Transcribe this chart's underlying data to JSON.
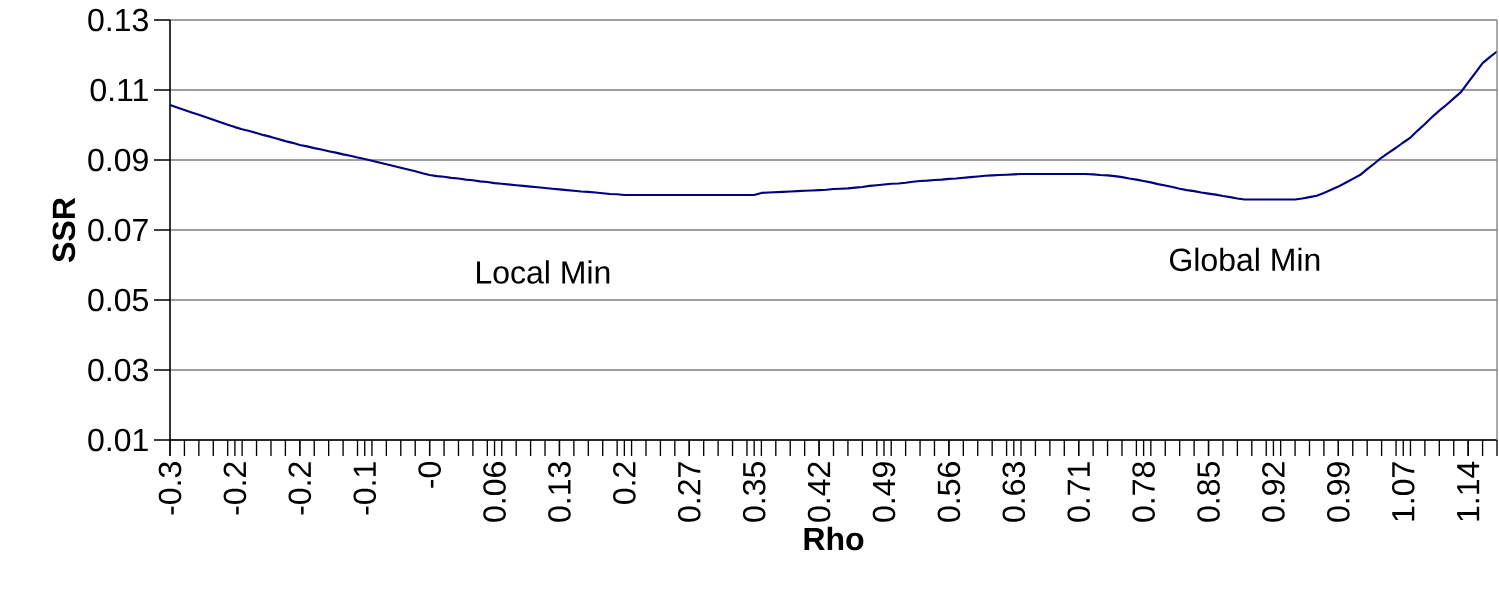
{
  "chart_data": {
    "type": "line",
    "xlabel": "Rho",
    "ylabel": "SSR",
    "categories": [
      "-0.3",
      null,
      null,
      null,
      null,
      null,
      null,
      null,
      null,
      "-0.2",
      null,
      null,
      null,
      null,
      null,
      null,
      null,
      null,
      "-0.2",
      null,
      null,
      null,
      null,
      null,
      null,
      null,
      null,
      "-0.1",
      null,
      null,
      null,
      null,
      null,
      null,
      null,
      null,
      "-0",
      null,
      null,
      null,
      null,
      null,
      null,
      null,
      null,
      "0.06",
      null,
      null,
      null,
      null,
      null,
      null,
      null,
      null,
      "0.13",
      null,
      null,
      null,
      null,
      null,
      null,
      null,
      null,
      "0.2",
      null,
      null,
      null,
      null,
      null,
      null,
      null,
      null,
      "0.27",
      null,
      null,
      null,
      null,
      null,
      null,
      null,
      null,
      "0.35",
      null,
      null,
      null,
      null,
      null,
      null,
      null,
      null,
      "0.42",
      null,
      null,
      null,
      null,
      null,
      null,
      null,
      null,
      "0.49",
      null,
      null,
      null,
      null,
      null,
      null,
      null,
      null,
      "0.56",
      null,
      null,
      null,
      null,
      null,
      null,
      null,
      null,
      "0.63",
      null,
      null,
      null,
      null,
      null,
      null,
      null,
      null,
      "0.71",
      null,
      null,
      null,
      null,
      null,
      null,
      null,
      null,
      "0.78",
      null,
      null,
      null,
      null,
      null,
      null,
      null,
      null,
      "0.85",
      null,
      null,
      null,
      null,
      null,
      null,
      null,
      null,
      "0.92",
      null,
      null,
      null,
      null,
      null,
      null,
      null,
      null,
      "0.99",
      null,
      null,
      null,
      null,
      null,
      null,
      null,
      null,
      "1.07",
      null,
      null,
      null,
      null,
      null,
      null,
      null,
      null,
      "1.14",
      null,
      null,
      null,
      null
    ],
    "values": [
      0.1057,
      0.105,
      0.1043,
      0.1036,
      0.1029,
      0.1022,
      0.1015,
      0.1008,
      0.1001,
      0.0994,
      0.0988,
      0.0983,
      0.0977,
      0.0971,
      0.0966,
      0.096,
      0.0954,
      0.0949,
      0.0943,
      0.0939,
      0.0934,
      0.093,
      0.0925,
      0.0921,
      0.0916,
      0.0912,
      0.0907,
      0.0903,
      0.0898,
      0.0893,
      0.0888,
      0.0883,
      0.0878,
      0.0873,
      0.0868,
      0.0862,
      0.0857,
      0.0854,
      0.0852,
      0.0849,
      0.0847,
      0.0844,
      0.0842,
      0.0839,
      0.0837,
      0.0834,
      0.0832,
      0.083,
      0.0828,
      0.0826,
      0.0824,
      0.0822,
      0.082,
      0.0818,
      0.0816,
      0.0814,
      0.0812,
      0.081,
      0.0809,
      0.0807,
      0.0805,
      0.0803,
      0.0802,
      0.08,
      0.08,
      0.08,
      0.08,
      0.08,
      0.08,
      0.08,
      0.08,
      0.08,
      0.08,
      0.08,
      0.08,
      0.08,
      0.08,
      0.08,
      0.08,
      0.08,
      0.08,
      0.08,
      0.0806,
      0.0807,
      0.0808,
      0.0809,
      0.081,
      0.0811,
      0.0812,
      0.0813,
      0.0814,
      0.0815,
      0.0817,
      0.0818,
      0.0819,
      0.0821,
      0.0823,
      0.0826,
      0.0828,
      0.083,
      0.0832,
      0.0833,
      0.0835,
      0.0838,
      0.084,
      0.0841,
      0.0843,
      0.0844,
      0.0846,
      0.0847,
      0.0849,
      0.0851,
      0.0853,
      0.0855,
      0.0856,
      0.0857,
      0.0858,
      0.0859,
      0.086,
      0.086,
      0.086,
      0.086,
      0.086,
      0.086,
      0.086,
      0.086,
      0.086,
      0.086,
      0.0859,
      0.0857,
      0.0856,
      0.0854,
      0.0851,
      0.0847,
      0.0844,
      0.084,
      0.0836,
      0.0831,
      0.0827,
      0.0823,
      0.0818,
      0.0814,
      0.0811,
      0.0807,
      0.0804,
      0.0801,
      0.0797,
      0.0794,
      0.079,
      0.0787,
      0.0787,
      0.0787,
      0.0787,
      0.0787,
      0.0787,
      0.0787,
      0.0787,
      0.079,
      0.0794,
      0.0798,
      0.0806,
      0.0815,
      0.0824,
      0.0835,
      0.0846,
      0.0857,
      0.0874,
      0.089,
      0.0907,
      0.0921,
      0.0935,
      0.095,
      0.0964,
      0.0984,
      0.1003,
      0.1023,
      0.1041,
      0.1058,
      0.1076,
      0.1094,
      0.1122,
      0.1149,
      0.1177,
      0.1194,
      0.121
    ],
    "color": "#000080",
    "ylim": [
      0.01,
      0.13
    ],
    "yticks": [
      0.01,
      0.03,
      0.05,
      0.07,
      0.09,
      0.11,
      0.13
    ],
    "grid": "y",
    "marker": "none",
    "line_style": "solid",
    "annotations": [
      "Local Min",
      "Global Min"
    ]
  }
}
